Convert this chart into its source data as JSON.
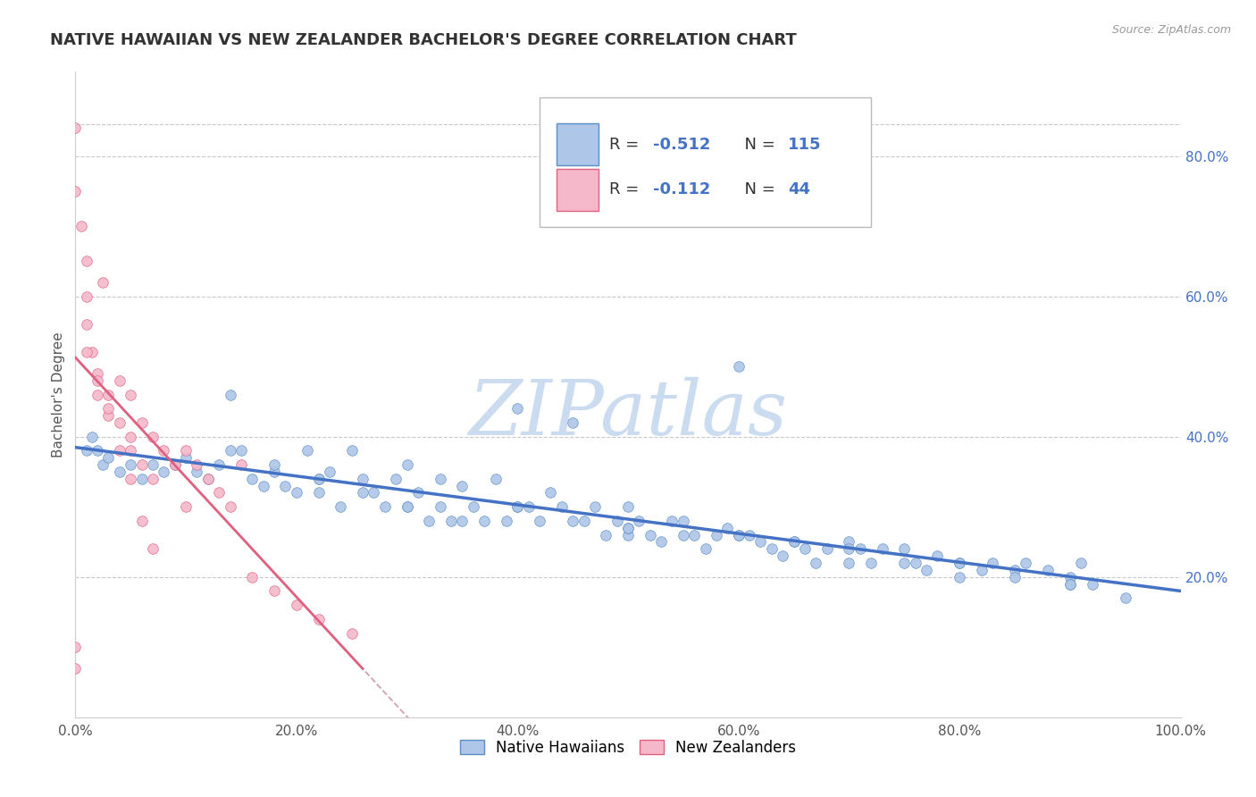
{
  "title": "NATIVE HAWAIIAN VS NEW ZEALANDER BACHELOR'S DEGREE CORRELATION CHART",
  "source": "Source: ZipAtlas.com",
  "ylabel": "Bachelor's Degree",
  "legend_bottom": [
    "Native Hawaiians",
    "New Zealanders"
  ],
  "R1": -0.512,
  "N1": 115,
  "R2": -0.112,
  "N2": 44,
  "color1": "#aec6e8",
  "color1_edge": "#5b8ec4",
  "color1_line": "#4472c4",
  "color2": "#f4b8ca",
  "color2_edge": "#e06080",
  "color2_line": "#e06080",
  "dashed_line_color": "#d0a0b0",
  "xlim": [
    0.0,
    1.0
  ],
  "ylim": [
    0.0,
    0.92
  ],
  "right_yticks": [
    0.2,
    0.4,
    0.6,
    0.8
  ],
  "right_yticklabels": [
    "20.0%",
    "40.0%",
    "60.0%",
    "80.0%"
  ],
  "xticks": [
    0.0,
    0.2,
    0.4,
    0.6,
    0.8,
    1.0
  ],
  "xticklabels": [
    "0.0%",
    "20.0%",
    "40.0%",
    "60.0%",
    "80.0%",
    "100.0%"
  ],
  "watermark": "ZIPatlas",
  "watermark_color": "#ccdcf0",
  "background_color": "#ffffff",
  "grid_color": "#c8c8c8",
  "title_color": "#333333",
  "title_fontsize": 13,
  "blue_x": [
    0.01,
    0.015,
    0.02,
    0.025,
    0.03,
    0.04,
    0.05,
    0.06,
    0.07,
    0.08,
    0.09,
    0.1,
    0.11,
    0.12,
    0.13,
    0.14,
    0.15,
    0.16,
    0.17,
    0.18,
    0.19,
    0.2,
    0.21,
    0.22,
    0.22,
    0.23,
    0.24,
    0.25,
    0.26,
    0.27,
    0.28,
    0.29,
    0.3,
    0.3,
    0.31,
    0.32,
    0.33,
    0.33,
    0.34,
    0.35,
    0.36,
    0.37,
    0.38,
    0.39,
    0.4,
    0.41,
    0.42,
    0.43,
    0.44,
    0.45,
    0.46,
    0.47,
    0.48,
    0.49,
    0.5,
    0.5,
    0.51,
    0.52,
    0.53,
    0.54,
    0.55,
    0.56,
    0.57,
    0.58,
    0.59,
    0.6,
    0.61,
    0.62,
    0.63,
    0.64,
    0.65,
    0.66,
    0.67,
    0.68,
    0.7,
    0.71,
    0.72,
    0.73,
    0.75,
    0.76,
    0.77,
    0.78,
    0.8,
    0.82,
    0.83,
    0.85,
    0.86,
    0.88,
    0.9,
    0.91,
    0.92,
    0.14,
    0.18,
    0.22,
    0.26,
    0.3,
    0.35,
    0.4,
    0.45,
    0.5,
    0.55,
    0.6,
    0.65,
    0.7,
    0.75,
    0.8,
    0.85,
    0.9,
    0.4,
    0.5,
    0.6,
    0.7,
    0.8,
    0.9,
    0.95
  ],
  "blue_y": [
    0.38,
    0.4,
    0.38,
    0.36,
    0.37,
    0.35,
    0.36,
    0.34,
    0.36,
    0.35,
    0.36,
    0.37,
    0.35,
    0.34,
    0.36,
    0.46,
    0.38,
    0.34,
    0.33,
    0.35,
    0.33,
    0.32,
    0.38,
    0.34,
    0.32,
    0.35,
    0.3,
    0.38,
    0.34,
    0.32,
    0.3,
    0.34,
    0.36,
    0.3,
    0.32,
    0.28,
    0.34,
    0.3,
    0.28,
    0.33,
    0.3,
    0.28,
    0.34,
    0.28,
    0.44,
    0.3,
    0.28,
    0.32,
    0.3,
    0.42,
    0.28,
    0.3,
    0.26,
    0.28,
    0.3,
    0.26,
    0.28,
    0.26,
    0.25,
    0.28,
    0.28,
    0.26,
    0.24,
    0.26,
    0.27,
    0.5,
    0.26,
    0.25,
    0.24,
    0.23,
    0.25,
    0.24,
    0.22,
    0.24,
    0.25,
    0.24,
    0.22,
    0.24,
    0.24,
    0.22,
    0.21,
    0.23,
    0.22,
    0.21,
    0.22,
    0.21,
    0.22,
    0.21,
    0.2,
    0.22,
    0.19,
    0.38,
    0.36,
    0.34,
    0.32,
    0.3,
    0.28,
    0.3,
    0.28,
    0.27,
    0.26,
    0.26,
    0.25,
    0.24,
    0.22,
    0.2,
    0.2,
    0.19,
    0.3,
    0.27,
    0.26,
    0.22,
    0.22,
    0.19,
    0.17
  ],
  "pink_x": [
    0.0,
    0.0,
    0.005,
    0.01,
    0.01,
    0.01,
    0.015,
    0.02,
    0.02,
    0.025,
    0.03,
    0.03,
    0.04,
    0.04,
    0.05,
    0.05,
    0.05,
    0.06,
    0.06,
    0.07,
    0.07,
    0.08,
    0.09,
    0.1,
    0.1,
    0.11,
    0.12,
    0.13,
    0.14,
    0.15,
    0.16,
    0.18,
    0.2,
    0.22,
    0.25,
    0.0,
    0.0,
    0.01,
    0.02,
    0.03,
    0.04,
    0.05,
    0.06,
    0.07
  ],
  "pink_y": [
    0.84,
    0.75,
    0.7,
    0.65,
    0.6,
    0.56,
    0.52,
    0.49,
    0.46,
    0.62,
    0.46,
    0.43,
    0.48,
    0.42,
    0.4,
    0.46,
    0.38,
    0.42,
    0.36,
    0.4,
    0.34,
    0.38,
    0.36,
    0.38,
    0.3,
    0.36,
    0.34,
    0.32,
    0.3,
    0.36,
    0.2,
    0.18,
    0.16,
    0.14,
    0.12,
    0.1,
    0.07,
    0.52,
    0.48,
    0.44,
    0.38,
    0.34,
    0.28,
    0.24
  ]
}
